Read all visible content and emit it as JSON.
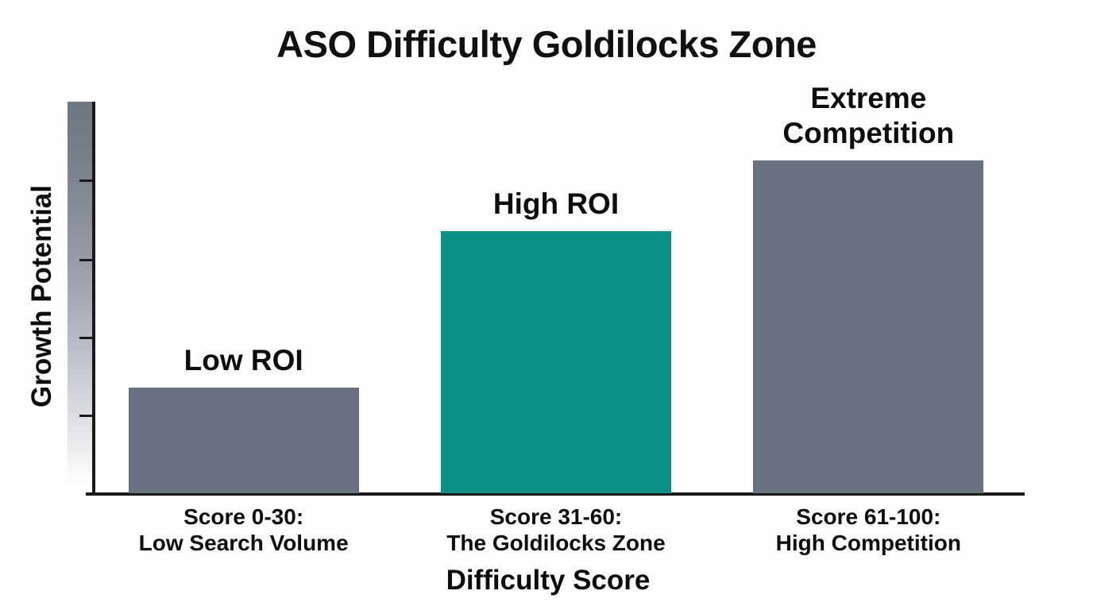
{
  "chart_data": {
    "type": "bar",
    "title": "ASO Difficulty Goldilocks Zone",
    "xlabel": "Difficulty Score",
    "ylabel": "Growth Potential",
    "ylim": [
      0,
      100
    ],
    "grid": false,
    "legend": false,
    "categories": [
      "Score 0-30: Low Search Volume",
      "Score 31-60: The Goldilocks Zone",
      "Score 61-100: High Competition"
    ],
    "bars": [
      {
        "name": "Low ROI",
        "value": 27,
        "color": "#697180",
        "tick_line1": "Score 0-30:",
        "tick_line2": "Low Search Volume"
      },
      {
        "name": "High ROI",
        "value": 67,
        "color": "#0c9185",
        "tick_line1": "Score 31-60:",
        "tick_line2": "The Goldilocks Zone"
      },
      {
        "name": "Extreme Competition",
        "value": 85,
        "color": "#697180",
        "tick_line1": "Score 61-100:",
        "tick_line2": "High Competition"
      }
    ],
    "colors": {
      "bar_gray": "#697180",
      "bar_teal": "#0c9185",
      "axis": "#1a1a1a",
      "text": "#0d0d0d",
      "background": "#fdfdfd"
    }
  }
}
